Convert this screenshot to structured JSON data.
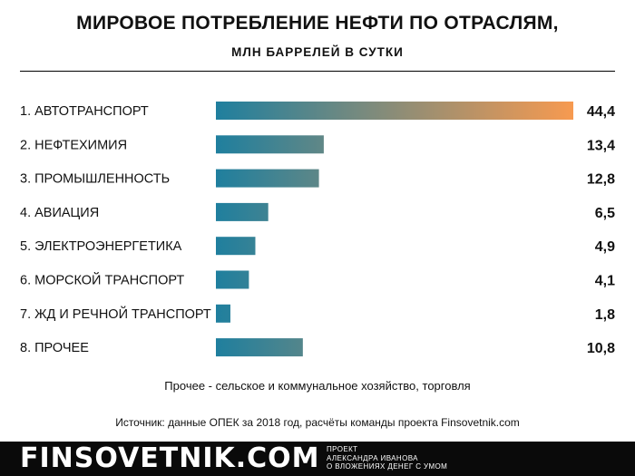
{
  "chart_data": {
    "type": "bar",
    "orientation": "horizontal",
    "title": "МИРОВОЕ ПОТРЕБЛЕНИЕ НЕФТИ ПО ОТРАСЛЯМ,",
    "subtitle": "МЛН БАРРЕЛЕЙ В СУТКИ",
    "categories": [
      "1. АВТОТРАНСПОРТ",
      "2. НЕФТЕХИМИЯ",
      "3. ПРОМЫШЛЕННОСТЬ",
      "4. АВИАЦИЯ",
      "5. ЭЛЕКТРОЭНЕРГЕТИКА",
      "6. МОРСКОЙ ТРАНСПОРТ",
      "7. ЖД И РЕЧНОЙ ТРАНСПОРТ",
      "8. ПРОЧЕЕ"
    ],
    "values": [
      44.4,
      13.4,
      12.8,
      6.5,
      4.9,
      4.1,
      1.8,
      10.8
    ],
    "value_labels": [
      "44,4",
      "13,4",
      "12,8",
      "6,5",
      "4,9",
      "4,1",
      "1,8",
      "10,8"
    ],
    "xlim": [
      0,
      44.4
    ],
    "grid": false,
    "bar_gradient": [
      "#1f7f9e",
      "#f79a50"
    ]
  },
  "note": "Прочее - сельское и коммунальное хозяйство, торговля",
  "source": "Источник: данные ОПЕК за 2018 год, расчёты команды проекта Finsovetnik.com",
  "footer": {
    "brand": "FINSOVETNIK.COM",
    "tagline": [
      "ПРОЕКТ",
      "АЛЕКСАНДРА ИВАНОВА",
      "О ВЛОЖЕНИЯХ ДЕНЕГ С УМОМ"
    ]
  }
}
